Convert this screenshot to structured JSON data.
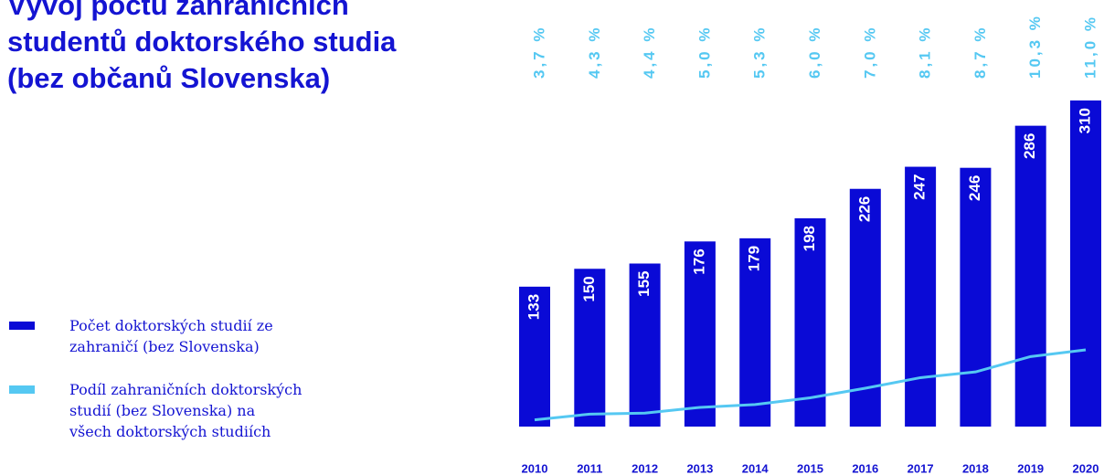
{
  "chart_data": {
    "type": "bar",
    "title": "Vývoj počtu zahraničních studentů doktorského studia (bez občanů Slovenska)",
    "categories": [
      "2010",
      "2011",
      "2012",
      "2013",
      "2014",
      "2015",
      "2016",
      "2017",
      "2018",
      "2019",
      "2020"
    ],
    "series": [
      {
        "name": "Počet doktorských studií ze zahraničí (bez Slovenska)",
        "color": "#0a0ad6",
        "type": "bar",
        "values": [
          133,
          150,
          155,
          176,
          179,
          198,
          226,
          247,
          246,
          286,
          310
        ]
      },
      {
        "name": "Podíl zahraničních doktorských studií (bez Slovenska) na všech doktorských studiích",
        "color": "#55c8f2",
        "type": "line",
        "axis": "y2",
        "values": [
          3.7,
          4.3,
          4.4,
          5.0,
          5.3,
          6.0,
          7.0,
          8.1,
          8.7,
          10.3,
          11.0
        ],
        "value_labels": [
          "3,7 %",
          "4,3 %",
          "4,4 %",
          "5,0 %",
          "5,3 %",
          "6,0 %",
          "7,0 %",
          "8,1 %",
          "8,7 %",
          "10,3 %",
          "11,0 %"
        ]
      }
    ],
    "ylim": [
      0,
      310
    ],
    "y2lim": [
      3,
      37
    ]
  }
}
